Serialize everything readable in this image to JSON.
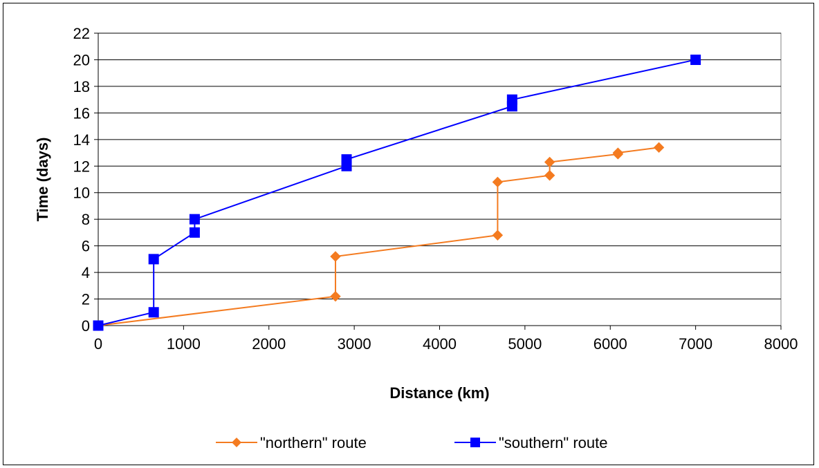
{
  "chart_data": {
    "type": "line",
    "title": "",
    "xlabel": "Distance (km)",
    "ylabel": "Time (days)",
    "xlim": [
      0,
      8000
    ],
    "ylim": [
      0,
      22
    ],
    "xticks": [
      0,
      1000,
      2000,
      3000,
      4000,
      5000,
      6000,
      7000,
      8000
    ],
    "yticks": [
      0,
      2,
      4,
      6,
      8,
      10,
      12,
      14,
      16,
      18,
      20,
      22
    ],
    "grid": "horizontal",
    "legend_position": "bottom",
    "series": [
      {
        "name": "\"northern\" route",
        "color": "#f47b20",
        "marker": "diamond",
        "x": [
          0,
          2780,
          2780,
          4680,
          4680,
          5290,
          5290,
          6090,
          6090,
          6570
        ],
        "y": [
          0,
          2.2,
          5.2,
          6.8,
          10.8,
          11.3,
          12.3,
          12.9,
          13.0,
          13.4
        ]
      },
      {
        "name": "\"southern\" route",
        "color": "#0000ff",
        "marker": "square",
        "x": [
          0,
          650,
          650,
          1130,
          1130,
          2910,
          2910,
          4850,
          4850,
          7000
        ],
        "y": [
          0,
          1.0,
          5.0,
          7.0,
          8.0,
          12.0,
          12.5,
          16.5,
          17.0,
          20.0
        ]
      }
    ]
  }
}
